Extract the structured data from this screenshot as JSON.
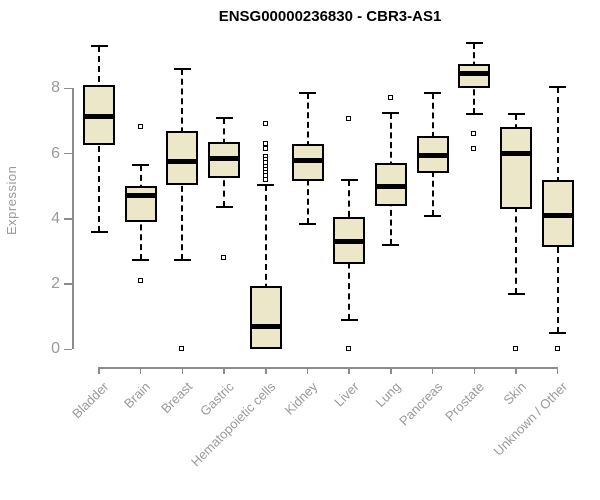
{
  "chart_data": {
    "type": "boxplot",
    "title": "ENSG00000236830 - CBR3-AS1",
    "ylabel": "Expression",
    "xlabel": "",
    "ylim": [
      0,
      9.5
    ],
    "yticks": [
      0,
      2,
      4,
      6,
      8
    ],
    "grid": false,
    "legend": "none",
    "colors": {
      "box_fill": "#EDE7C9",
      "box_stroke": "#000000",
      "median": "#000000",
      "axis": "#8C8C8C",
      "tick_label": "#9A9A9A",
      "title": "#000000",
      "background": "#FFFFFF"
    },
    "categories": [
      "Bladder",
      "Brain",
      "Breast",
      "Gastric",
      "Hematopoietic cells",
      "Kidney",
      "Liver",
      "Lung",
      "Pancreas",
      "Prostate",
      "Skin",
      "Unknown / Other"
    ],
    "series": [
      {
        "name": "Bladder",
        "whisker_low": 3.6,
        "q1": 6.25,
        "median": 7.15,
        "q3": 8.1,
        "whisker_high": 9.3,
        "outliers": []
      },
      {
        "name": "Brain",
        "whisker_low": 2.75,
        "q1": 3.9,
        "median": 4.7,
        "q3": 5.0,
        "whisker_high": 5.65,
        "outliers": [
          6.8,
          2.1
        ]
      },
      {
        "name": "Breast",
        "whisker_low": 2.75,
        "q1": 5.05,
        "median": 5.75,
        "q3": 6.7,
        "whisker_high": 8.6,
        "outliers": [
          0
        ]
      },
      {
        "name": "Gastric",
        "whisker_low": 4.35,
        "q1": 5.25,
        "median": 5.85,
        "q3": 6.35,
        "whisker_high": 7.1,
        "outliers": [
          2.8
        ]
      },
      {
        "name": "Hematopoietic cells",
        "whisker_low": 0.0,
        "q1": 0.0,
        "median": 0.7,
        "q3": 1.95,
        "whisker_high": 5.05,
        "outliers": [
          6.9,
          6.3,
          6.15,
          5.9,
          5.8,
          5.7,
          5.6,
          5.5,
          5.4,
          5.3,
          5.2
        ]
      },
      {
        "name": "Kidney",
        "whisker_low": 3.85,
        "q1": 5.15,
        "median": 5.8,
        "q3": 6.3,
        "whisker_high": 7.85,
        "outliers": []
      },
      {
        "name": "Liver",
        "whisker_low": 0.9,
        "q1": 2.6,
        "median": 3.3,
        "q3": 4.05,
        "whisker_high": 5.2,
        "outliers": [
          7.05,
          0
        ]
      },
      {
        "name": "Lung",
        "whisker_low": 3.2,
        "q1": 4.4,
        "median": 5.0,
        "q3": 5.7,
        "whisker_high": 7.25,
        "outliers": [
          7.7
        ]
      },
      {
        "name": "Pancreas",
        "whisker_low": 4.1,
        "q1": 5.4,
        "median": 5.95,
        "q3": 6.55,
        "whisker_high": 7.85,
        "outliers": []
      },
      {
        "name": "Prostate",
        "whisker_low": 7.2,
        "q1": 8.0,
        "median": 8.45,
        "q3": 8.75,
        "whisker_high": 9.4,
        "outliers": [
          6.6,
          6.15
        ]
      },
      {
        "name": "Skin",
        "whisker_low": 1.7,
        "q1": 4.3,
        "median": 6.0,
        "q3": 6.8,
        "whisker_high": 7.2,
        "outliers": [
          0
        ]
      },
      {
        "name": "Unknown / Other",
        "whisker_low": 0.5,
        "q1": 3.15,
        "median": 4.1,
        "q3": 5.2,
        "whisker_high": 8.05,
        "outliers": [
          0
        ]
      }
    ]
  }
}
